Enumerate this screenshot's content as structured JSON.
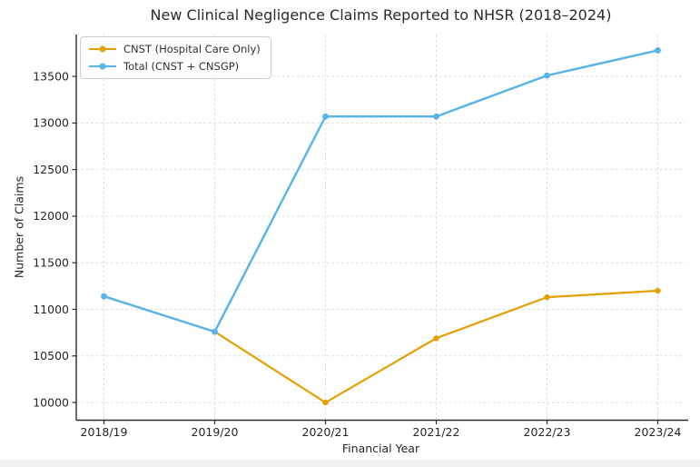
{
  "chart_data": {
    "type": "line",
    "title": "New Clinical Negligence Claims Reported to NHSR (2018–2024)",
    "xlabel": "Financial Year",
    "ylabel": "Number of Claims",
    "categories": [
      "2018/19",
      "2019/20",
      "2020/21",
      "2021/22",
      "2022/23",
      "2023/24"
    ],
    "series": [
      {
        "name": "CNST (Hospital Care Only)",
        "color": "#E69F00",
        "marker": "circle",
        "values": [
          11140,
          10760,
          10000,
          10690,
          11130,
          11200
        ]
      },
      {
        "name": "Total (CNST + CNSGP)",
        "color": "#56B4E9",
        "marker": "circle",
        "values": [
          11140,
          10760,
          13070,
          13070,
          13510,
          13780
        ]
      }
    ],
    "yticks": [
      10000,
      10500,
      11000,
      11500,
      12000,
      12500,
      13000,
      13500
    ],
    "ylim": [
      9810,
      13950
    ],
    "grid": true,
    "grid_style": "dashed",
    "legend_position": "upper left",
    "colors": {
      "grid": "#dfdfdf",
      "spine": "#2b2b2b",
      "tick_label": "#262626",
      "background": "#ffffff",
      "bottom_strip": "#f1f0ee"
    }
  }
}
